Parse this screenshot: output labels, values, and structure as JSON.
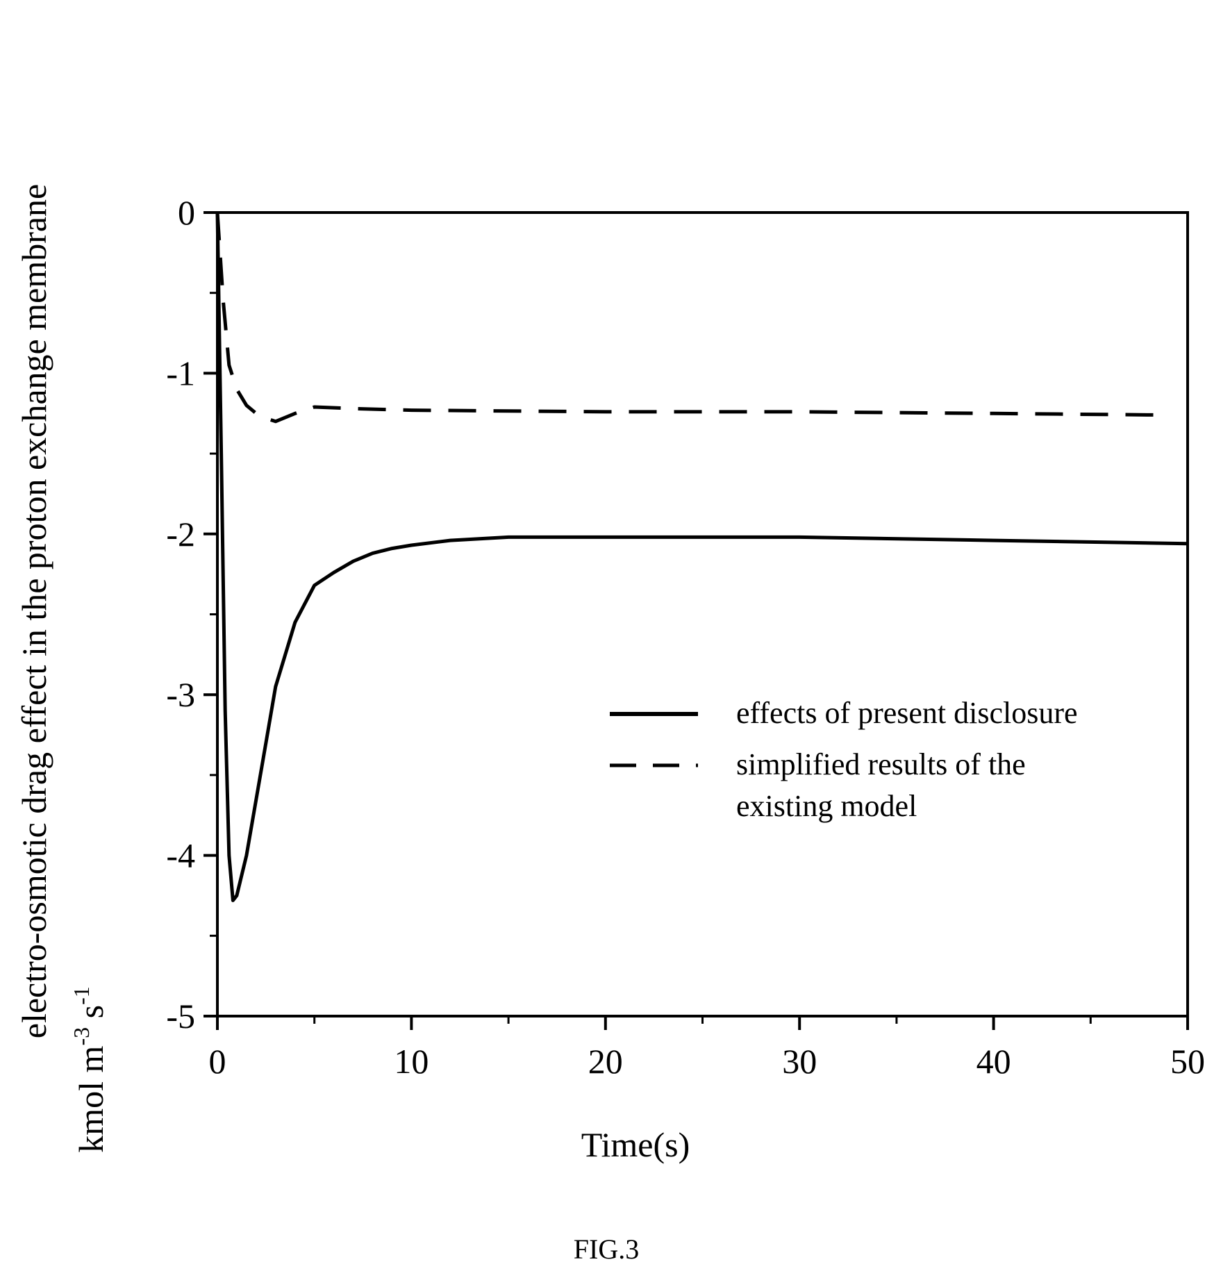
{
  "chart_data": {
    "type": "line",
    "xlabel": "Time(s)",
    "ylabel": {
      "line1": "electro-osmotic drag effect in the proton exchange membrane",
      "unit_prefix": "kmol m",
      "unit_exp1": "-3",
      "unit_mid": " s",
      "unit_exp2": "-1"
    },
    "xlim": [
      0,
      50
    ],
    "ylim": [
      -5,
      0
    ],
    "x_ticks": [
      0,
      10,
      20,
      30,
      40,
      50
    ],
    "x_tick_labels": [
      "0",
      "10",
      "20",
      "30",
      "40",
      "50"
    ],
    "x_minor_ticks": [
      5,
      15,
      25,
      35,
      45
    ],
    "y_ticks": [
      0,
      -1,
      -2,
      -3,
      -4,
      -5
    ],
    "y_tick_labels": [
      "0",
      "-1",
      "-2",
      "-3",
      "-4",
      "-5"
    ],
    "y_minor_ticks": [
      -0.5,
      -1.5,
      -2.5,
      -3.5,
      -4.5
    ],
    "grid": false,
    "legend_position": "right-center",
    "series": [
      {
        "name": "effects of present disclosure",
        "style": "solid",
        "x": [
          0,
          0.2,
          0.4,
          0.6,
          0.8,
          1.0,
          1.5,
          2,
          2.5,
          3,
          3.5,
          4,
          5,
          6,
          7,
          8,
          9,
          10,
          12,
          15,
          20,
          30,
          40,
          50
        ],
        "y": [
          0,
          -1.5,
          -3.1,
          -4.0,
          -4.28,
          -4.25,
          -4.0,
          -3.65,
          -3.3,
          -2.95,
          -2.75,
          -2.55,
          -2.32,
          -2.24,
          -2.17,
          -2.12,
          -2.09,
          -2.07,
          -2.04,
          -2.02,
          -2.02,
          -2.02,
          -2.04,
          -2.06
        ]
      },
      {
        "name_line1": "simplified results of the",
        "name_line2": "existing model",
        "style": "dashed",
        "x": [
          0,
          0.3,
          0.6,
          1.0,
          1.5,
          2,
          2.5,
          3,
          4,
          5,
          7,
          10,
          20,
          30,
          40,
          49
        ],
        "y": [
          0,
          -0.55,
          -0.95,
          -1.1,
          -1.2,
          -1.25,
          -1.28,
          -1.3,
          -1.25,
          -1.21,
          -1.22,
          -1.23,
          -1.24,
          -1.24,
          -1.25,
          -1.26
        ]
      }
    ],
    "caption": "FIG.3"
  },
  "colors": {
    "line": "#000000",
    "background": "#ffffff"
  }
}
